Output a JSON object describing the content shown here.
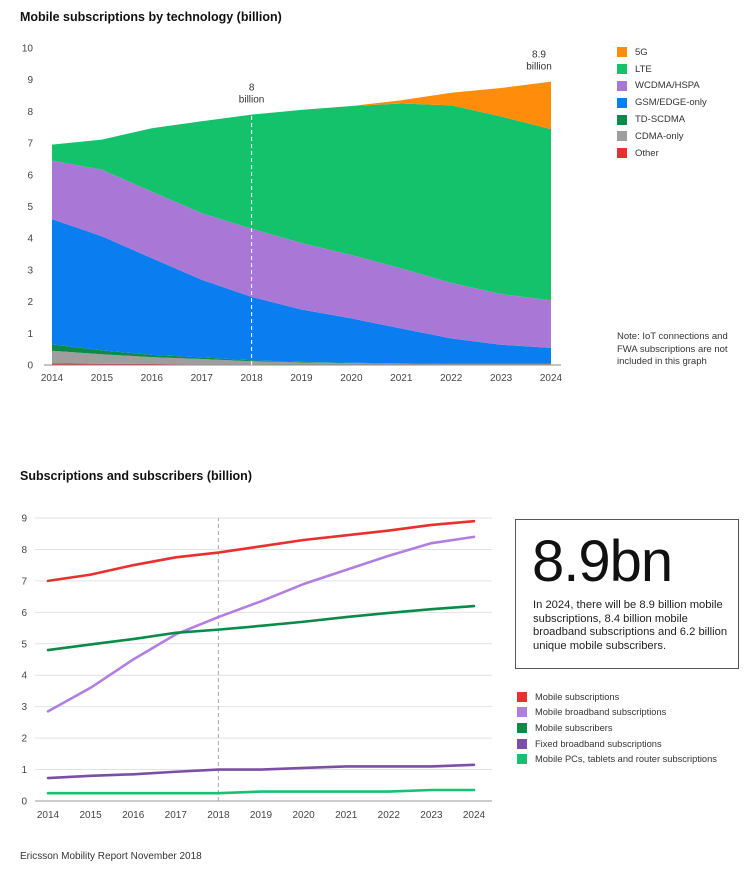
{
  "footer": "Ericsson Mobility Report November 2018",
  "callout": {
    "headline": "8.9bn",
    "text": "In 2024, there will be 8.9 billion mobile subscriptions, 8.4 billion mobile broadband subscriptions and 6.2 billion unique mobile subscribers."
  },
  "note": "Note: IoT connections and FWA subscriptions are not included in this graph",
  "chart_data": [
    {
      "type": "area",
      "title": "Mobile subscriptions by technology (billion)",
      "x": [
        2014,
        2015,
        2016,
        2017,
        2018,
        2019,
        2020,
        2021,
        2022,
        2023,
        2024
      ],
      "ylim": [
        0,
        10
      ],
      "yticks": [
        0,
        1,
        2,
        3,
        4,
        5,
        6,
        7,
        8,
        9,
        10
      ],
      "grid": false,
      "legend_position": "right",
      "stacking_order_bottom_to_top": [
        "Other",
        "CDMA-only",
        "TD-SCDMA",
        "GSM/EDGE-only",
        "WCDMA/HSPA",
        "LTE",
        "5G"
      ],
      "series": [
        {
          "name": "5G",
          "color": "#ff8c0a",
          "values": [
            0,
            0,
            0,
            0,
            0,
            0,
            0,
            0.1,
            0.4,
            0.9,
            1.5
          ]
        },
        {
          "name": "LTE",
          "color": "#13c26b",
          "values": [
            0.5,
            0.95,
            2.0,
            2.9,
            3.6,
            4.2,
            4.7,
            5.2,
            5.6,
            5.6,
            5.4
          ]
        },
        {
          "name": "WCDMA/HSPA",
          "color": "#a978d6",
          "values": [
            1.85,
            2.1,
            2.1,
            2.1,
            2.15,
            2.1,
            2.0,
            1.9,
            1.75,
            1.6,
            1.5
          ]
        },
        {
          "name": "GSM/EDGE-only",
          "color": "#0a7ef0",
          "values": [
            3.95,
            3.6,
            3.05,
            2.45,
            2.0,
            1.65,
            1.4,
            1.1,
            0.8,
            0.6,
            0.5
          ]
        },
        {
          "name": "TD-SCDMA",
          "color": "#0b8a4a",
          "values": [
            0.2,
            0.12,
            0.07,
            0.05,
            0.03,
            0.02,
            0.01,
            0.01,
            0.01,
            0.01,
            0.01
          ]
        },
        {
          "name": "CDMA-only",
          "color": "#9e9e9e",
          "values": [
            0.4,
            0.3,
            0.22,
            0.17,
            0.1,
            0.07,
            0.05,
            0.03,
            0.02,
            0.02,
            0.02
          ]
        },
        {
          "name": "Other",
          "color": "#e8302e",
          "values": [
            0.05,
            0.04,
            0.03,
            0.02,
            0.02,
            0.01,
            0.01,
            0.01,
            0.01,
            0.01,
            0.01
          ]
        }
      ],
      "annotations": [
        {
          "x": 2018,
          "lines": [
            "8",
            "billion"
          ],
          "dashed_line": true
        },
        {
          "x": 2024,
          "lines": [
            "8.9",
            "billion"
          ],
          "dashed_line": false
        }
      ]
    },
    {
      "type": "line",
      "title": "Subscriptions and subscribers (billion)",
      "x": [
        2014,
        2015,
        2016,
        2017,
        2018,
        2019,
        2020,
        2021,
        2022,
        2023,
        2024
      ],
      "ylim": [
        0,
        9
      ],
      "yticks": [
        0,
        1,
        2,
        3,
        4,
        5,
        6,
        7,
        8,
        9
      ],
      "grid": true,
      "legend_position": "bottom-right",
      "marker_x": 2018,
      "series": [
        {
          "name": "Mobile subscriptions",
          "color": "#e8302e",
          "values": [
            7.0,
            7.2,
            7.5,
            7.75,
            7.9,
            8.1,
            8.3,
            8.45,
            8.6,
            8.78,
            8.9
          ]
        },
        {
          "name": "Mobile broadband subscriptions",
          "color": "#b07fe0",
          "values": [
            2.85,
            3.6,
            4.5,
            5.3,
            5.85,
            6.35,
            6.9,
            7.35,
            7.8,
            8.2,
            8.4
          ]
        },
        {
          "name": "Mobile subscribers",
          "color": "#0b8a4a",
          "values": [
            4.8,
            4.98,
            5.15,
            5.35,
            5.45,
            5.57,
            5.7,
            5.85,
            5.98,
            6.1,
            6.2
          ]
        },
        {
          "name": "Fixed broadband subscriptions",
          "color": "#7b4fa8",
          "values": [
            0.73,
            0.8,
            0.85,
            0.93,
            1.0,
            1.0,
            1.05,
            1.1,
            1.1,
            1.1,
            1.15
          ]
        },
        {
          "name": "Mobile PCs, tablets and router subscriptions",
          "color": "#17c172",
          "values": [
            0.25,
            0.25,
            0.25,
            0.25,
            0.25,
            0.3,
            0.3,
            0.3,
            0.3,
            0.35,
            0.35
          ]
        }
      ]
    }
  ]
}
